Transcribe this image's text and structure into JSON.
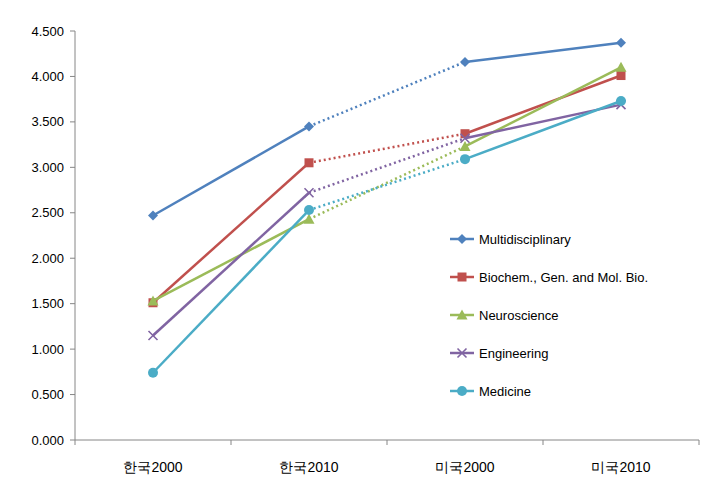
{
  "chart_data": {
    "type": "line",
    "categories": [
      "한국2000",
      "한국2010",
      "미국2000",
      "미국2010"
    ],
    "series": [
      {
        "name": "Multidisciplinary",
        "color": "#4f81bd",
        "marker": "diamond",
        "values": [
          2.47,
          3.45,
          4.16,
          4.37
        ]
      },
      {
        "name": "Biochem., Gen. and Mol. Bio.",
        "color": "#c0504d",
        "marker": "square",
        "values": [
          1.51,
          3.05,
          3.37,
          4.01
        ]
      },
      {
        "name": "Neuroscience",
        "color": "#9bbb59",
        "marker": "triangle",
        "values": [
          1.53,
          2.43,
          3.23,
          4.1
        ]
      },
      {
        "name": "Engineering",
        "color": "#8064a2",
        "marker": "x",
        "values": [
          1.15,
          2.72,
          3.32,
          3.69
        ]
      },
      {
        "name": "Medicine",
        "color": "#4bacc6",
        "marker": "circle",
        "values": [
          0.74,
          2.53,
          3.09,
          3.73
        ]
      }
    ],
    "ylim": [
      0,
      4.5
    ],
    "yticks": [
      {
        "value": 0,
        "label": "0.000"
      },
      {
        "value": 0.5,
        "label": "0.500"
      },
      {
        "value": 1,
        "label": "1.000"
      },
      {
        "value": 1.5,
        "label": "1.500"
      },
      {
        "value": 2,
        "label": "2.000"
      },
      {
        "value": 2.5,
        "label": "2.500"
      },
      {
        "value": 3,
        "label": "3.000"
      },
      {
        "value": 3.5,
        "label": "3.500"
      },
      {
        "value": 4,
        "label": "4.000"
      },
      {
        "value": 4.5,
        "label": "4.500"
      }
    ],
    "grid": false,
    "legend": "right"
  }
}
